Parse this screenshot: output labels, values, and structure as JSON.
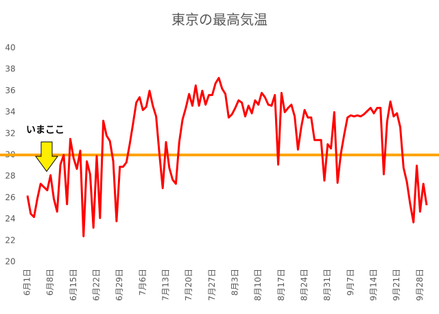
{
  "chart_data": {
    "type": "line",
    "title": "東京の最高気温",
    "categories": [
      "6月1日",
      null,
      null,
      null,
      null,
      null,
      null,
      "6月8日",
      null,
      null,
      null,
      null,
      null,
      null,
      "6月15日",
      null,
      null,
      null,
      null,
      null,
      null,
      "6月22日",
      null,
      null,
      null,
      null,
      null,
      null,
      "6月29日",
      null,
      null,
      null,
      null,
      null,
      null,
      "7月6日",
      null,
      null,
      null,
      null,
      null,
      null,
      "7月13日",
      null,
      null,
      null,
      null,
      null,
      null,
      "7月20日",
      null,
      null,
      null,
      null,
      null,
      null,
      "7月27日",
      null,
      null,
      null,
      null,
      null,
      null,
      "8月3日",
      null,
      null,
      null,
      null,
      null,
      null,
      "8月10日",
      null,
      null,
      null,
      null,
      null,
      null,
      "8月17日",
      null,
      null,
      null,
      null,
      null,
      null,
      "8月24日",
      null,
      null,
      null,
      null,
      null,
      null,
      "8月31日",
      null,
      null,
      null,
      null,
      null,
      null,
      "9月7日",
      null,
      null,
      null,
      null,
      null,
      null,
      "9月14日",
      null,
      null,
      null,
      null,
      null,
      null,
      "9月21日",
      null,
      null,
      null,
      null,
      null,
      null,
      "9月28日",
      null,
      null
    ],
    "values": [
      26.2,
      24.5,
      24.2,
      25.9,
      27.3,
      27.0,
      26.7,
      28.1,
      25.9,
      24.7,
      29.1,
      30.0,
      25.4,
      31.5,
      29.7,
      28.7,
      30.4,
      22.4,
      29.4,
      28.2,
      23.2,
      29.9,
      24.1,
      33.2,
      31.8,
      31.3,
      29.4,
      23.8,
      28.9,
      28.9,
      29.3,
      31.0,
      32.9,
      34.9,
      35.4,
      34.2,
      34.5,
      36.0,
      34.6,
      33.6,
      30.1,
      26.9,
      31.2,
      28.8,
      27.7,
      27.3,
      31.2,
      33.3,
      34.4,
      35.7,
      34.6,
      36.5,
      34.6,
      36.0,
      34.7,
      35.6,
      35.6,
      36.7,
      37.2,
      36.2,
      35.7,
      33.5,
      33.8,
      34.4,
      35.1,
      34.9,
      33.6,
      34.6,
      33.9,
      35.1,
      34.7,
      35.8,
      35.4,
      34.7,
      34.6,
      35.6,
      29.1,
      35.8,
      34.0,
      34.4,
      34.7,
      33.6,
      30.5,
      32.6,
      34.2,
      33.5,
      33.5,
      31.4,
      31.4,
      31.4,
      27.6,
      31.0,
      30.6,
      34.0,
      27.4,
      30.1,
      31.9,
      33.5,
      33.7,
      33.6,
      33.7,
      33.6,
      33.8,
      34.1,
      34.4,
      33.9,
      34.4,
      34.4,
      28.2,
      33.1,
      35.0,
      33.6,
      33.9,
      32.6,
      28.8,
      27.5,
      25.4,
      23.7,
      29.0,
      24.7,
      27.3,
      25.3
    ],
    "color": "#ff0000",
    "ylim": [
      20,
      40
    ],
    "yticks": [
      20,
      22,
      24,
      26,
      28,
      30,
      32,
      34,
      36,
      38,
      40
    ],
    "reference_line": {
      "value": 30,
      "color": "#ffa500"
    },
    "annotation": "いまここ"
  }
}
